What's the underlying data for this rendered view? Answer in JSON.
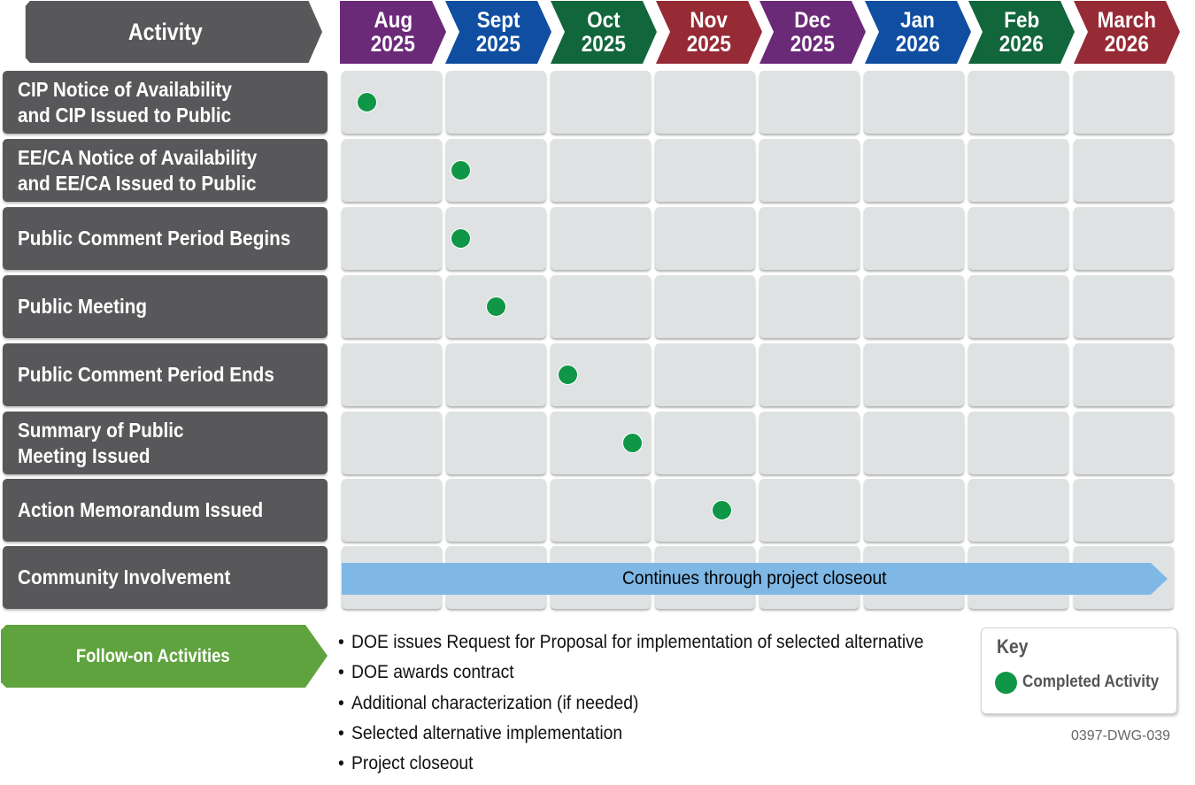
{
  "header": {
    "activity_label": "Activity"
  },
  "months": [
    {
      "label": "Aug",
      "year": "2025",
      "color": "#6b2a78"
    },
    {
      "label": "Sept",
      "year": "2025",
      "color": "#0f4ea1"
    },
    {
      "label": "Oct",
      "year": "2025",
      "color": "#12663b"
    },
    {
      "label": "Nov",
      "year": "2025",
      "color": "#962a35"
    },
    {
      "label": "Dec",
      "year": "2025",
      "color": "#6b2a78"
    },
    {
      "label": "Jan",
      "year": "2026",
      "color": "#0f4ea1"
    },
    {
      "label": "Feb",
      "year": "2026",
      "color": "#12663b"
    },
    {
      "label": "March",
      "year": "2026",
      "color": "#962a35"
    }
  ],
  "activities": [
    {
      "label": "CIP Notice of Availability\nand CIP Issued to Public",
      "completed_month_position": 0.25
    },
    {
      "label": "EE/CA Notice of Availability\nand EE/CA Issued to Public",
      "completed_month_position": 1.15
    },
    {
      "label": "Public Comment Period Begins",
      "completed_month_position": 1.15
    },
    {
      "label": "Public Meeting",
      "completed_month_position": 1.5
    },
    {
      "label": "Public Comment Period Ends",
      "completed_month_position": 2.17
    },
    {
      "label": "Summary of Public\nMeeting Issued",
      "completed_month_position": 2.82
    },
    {
      "label": "Action Memorandum Issued",
      "completed_month_position": 3.67
    },
    {
      "label": "Community Involvement",
      "completed_month_position": null
    }
  ],
  "community_involvement_bar": "Continues through project closeout",
  "follow_on": {
    "label": "Follow-on Activities",
    "items": [
      "DOE issues Request for Proposal for implementation of selected alternative",
      "DOE awards contract",
      "Additional characterization (if needed)",
      "Selected alternative implementation",
      "Project closeout"
    ]
  },
  "key": {
    "title": "Key",
    "completed_label": "Completed Activity"
  },
  "drawing_id": "0397-DWG-039",
  "colors": {
    "completed": "#0f9647",
    "row_label": "#58585b",
    "cell": "#dfe2e3",
    "continues": "#7fb8e5",
    "follow_on": "#5fa33e"
  }
}
